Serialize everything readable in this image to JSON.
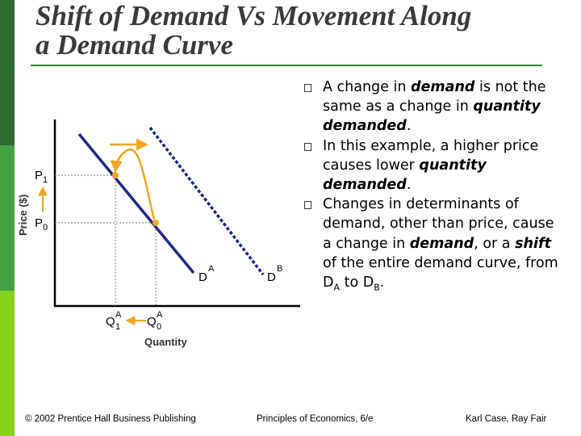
{
  "colors": {
    "dark_green": "#2f6b33",
    "mid_green": "#46a046",
    "light_green": "#86d21d",
    "curve": "#1e2a80",
    "arrow": "#f0a621"
  },
  "title": {
    "line1": "Shift of Demand Vs Movement Along",
    "line2": "a Demand Curve"
  },
  "graph": {
    "ylabel": "Price ($)",
    "xlabel": "Quantity",
    "p1": "P",
    "p1_sub": "1",
    "p0": "P",
    "p0_sub": "0",
    "q1": "Q",
    "q1_sub": "1",
    "q1_sup": "A",
    "q0": "Q",
    "q0_sub": "0",
    "q0_sup": "A",
    "curve_a": "D",
    "curve_a_sup": "A",
    "curve_b": "D",
    "curve_b_sup": "B"
  },
  "bullets": [
    [
      {
        "t": "A change in ",
        "s": "n"
      },
      {
        "t": "demand",
        "s": "bi"
      },
      {
        "t": " is not the same as a change in ",
        "s": "n"
      },
      {
        "t": "quantity demanded",
        "s": "bi"
      },
      {
        "t": ".",
        "s": "n"
      }
    ],
    [
      {
        "t": "In this example, a higher price causes lower ",
        "s": "n"
      },
      {
        "t": "quantity demanded",
        "s": "bi"
      },
      {
        "t": ".",
        "s": "n"
      }
    ],
    [
      {
        "t": "Changes in determinants of demand, other than price, cause a change in ",
        "s": "n"
      },
      {
        "t": "demand",
        "s": "bi"
      },
      {
        "t": ", or a ",
        "s": "n"
      },
      {
        "t": "shift",
        "s": "bi"
      },
      {
        "t": " of the entire demand curve, from D",
        "s": "n"
      },
      {
        "t": "A",
        "s": "sub"
      },
      {
        "t": " to D",
        "s": "n"
      },
      {
        "t": "B",
        "s": "sub"
      },
      {
        "t": ".",
        "s": "n"
      }
    ]
  ],
  "footer": {
    "left": "© 2002 Prentice Hall Business Publishing",
    "center": "Principles of Economics, 6/e",
    "right": "Karl Case, Ray Fair"
  }
}
